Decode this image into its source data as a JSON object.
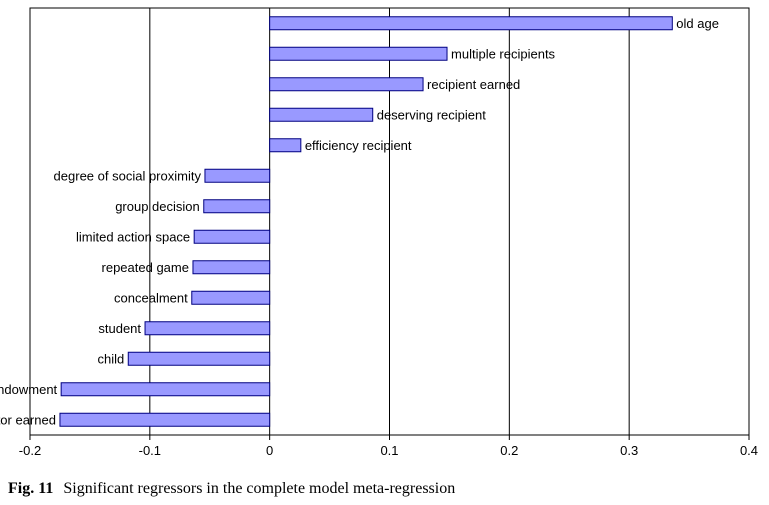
{
  "chart_data": {
    "type": "bar",
    "orientation": "horizontal",
    "categories": [
      "old age",
      "multiple recipients",
      "recipient earned",
      "deserving recipient",
      "efficiency recipient",
      "degree of social proximity",
      "group decision",
      "limited action space",
      "repeated game",
      "concealment",
      "student",
      "child",
      "recipient endowment",
      "dictator earned"
    ],
    "values": [
      0.336,
      0.148,
      0.128,
      0.086,
      0.026,
      -0.054,
      -0.055,
      -0.063,
      -0.064,
      -0.065,
      -0.104,
      -0.118,
      -0.174,
      -0.175
    ],
    "xlim": [
      -0.2,
      0.4
    ],
    "xticks": [
      -0.2,
      -0.1,
      0,
      0.1,
      0.2,
      0.3,
      0.4
    ],
    "xtick_labels": [
      "-0.2",
      "-0.1",
      "0",
      "0.1",
      "0.2",
      "0.3",
      "0.4"
    ],
    "grid": "vertical",
    "bar_color": "#9999ff",
    "bar_edge_color": "#000080",
    "title": "",
    "xlabel": "",
    "ylabel": ""
  },
  "caption": {
    "label": "Fig. 11",
    "text": "Significant regressors in the complete model meta-regression"
  }
}
